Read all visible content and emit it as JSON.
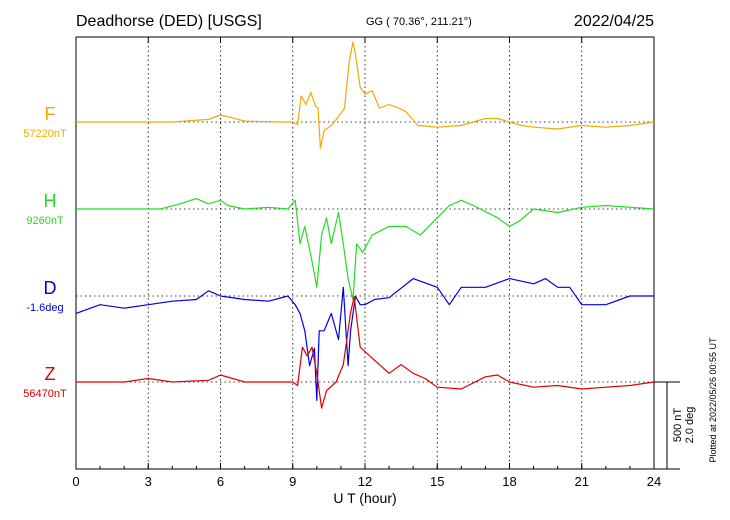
{
  "header": {
    "station": "Deadhorse (DED)  [USGS]",
    "coords": "GG ( 70.36°, 211.21°)",
    "date": "2022/04/25"
  },
  "footer": {
    "plotted": "Plotted at 2022/05/26 00:55 UT"
  },
  "chart_data": {
    "type": "line",
    "xlabel": "U T (hour)",
    "xlim": [
      0,
      24
    ],
    "xticks": [
      "0",
      "3",
      "6",
      "9",
      "12",
      "15",
      "18",
      "21",
      "24"
    ],
    "scale_bar": {
      "line1": "500 nT",
      "line2": "2.0 deg"
    },
    "grid": true,
    "series": [
      {
        "name": "F",
        "baseline_label": "57220nT",
        "color": "#f0aa00",
        "x": [
          0,
          2,
          4,
          5.5,
          6,
          7,
          8.5,
          9,
          9.2,
          9.35,
          9.55,
          9.75,
          9.95,
          10.05,
          10.15,
          10.3,
          10.6,
          10.9,
          11.15,
          11.35,
          11.5,
          11.6,
          11.8,
          12.0,
          12.3,
          12.6,
          13.0,
          13.4,
          13.7,
          14.2,
          15,
          16,
          17,
          17.5,
          18,
          18.5,
          19,
          20,
          21,
          22,
          23,
          24
        ],
        "values": [
          0,
          0,
          0,
          15,
          40,
          5,
          0,
          0,
          -15,
          150,
          100,
          170,
          90,
          80,
          -150,
          -50,
          -20,
          30,
          80,
          350,
          460,
          390,
          200,
          160,
          180,
          80,
          100,
          80,
          60,
          -20,
          -30,
          -20,
          20,
          20,
          0,
          -20,
          -30,
          -40,
          -20,
          -30,
          -20,
          0
        ]
      },
      {
        "name": "H",
        "baseline_label": "9260nT",
        "color": "#22dd22",
        "x": [
          0,
          2,
          3.5,
          4.2,
          5,
          5.5,
          6,
          6.3,
          7,
          8,
          8.8,
          9.1,
          9.3,
          9.5,
          9.8,
          10.0,
          10.2,
          10.4,
          10.6,
          10.9,
          11.1,
          11.3,
          11.5,
          11.65,
          11.9,
          12.3,
          13.0,
          13.7,
          14.3,
          15.0,
          15.5,
          16,
          16.5,
          17.5,
          18.0,
          18.4,
          19,
          20,
          21,
          22,
          23,
          24
        ],
        "values": [
          0,
          0,
          0,
          25,
          60,
          30,
          50,
          20,
          0,
          10,
          0,
          50,
          -200,
          -100,
          -300,
          -450,
          -150,
          -50,
          -200,
          -20,
          -200,
          -400,
          -520,
          -200,
          -250,
          -150,
          -100,
          -100,
          -150,
          -50,
          20,
          50,
          20,
          -50,
          -100,
          -70,
          0,
          -20,
          10,
          20,
          10,
          0
        ]
      },
      {
        "name": "D",
        "baseline_label": "-1.6deg",
        "color": "#0000dd",
        "x": [
          0,
          1,
          2,
          3,
          4,
          5,
          5.5,
          6,
          7,
          8,
          8.8,
          9.1,
          9.3,
          9.5,
          9.7,
          9.9,
          10.0,
          10.1,
          10.3,
          10.6,
          10.9,
          11.1,
          11.3,
          11.4,
          11.6,
          11.8,
          12.0,
          12.4,
          13.0,
          14.0,
          15.0,
          15.5,
          16,
          17,
          18,
          19,
          19.5,
          20,
          20.5,
          21,
          22,
          23,
          24
        ],
        "values": [
          -100,
          -50,
          -70,
          -50,
          -30,
          -20,
          30,
          0,
          -20,
          -30,
          0,
          -50,
          -100,
          -200,
          -400,
          -300,
          -600,
          -200,
          -200,
          -100,
          -250,
          50,
          -400,
          -200,
          0,
          -50,
          -50,
          -20,
          -10,
          100,
          50,
          -50,
          50,
          50,
          100,
          70,
          100,
          50,
          50,
          -50,
          -50,
          0,
          0
        ]
      },
      {
        "name": "Z",
        "baseline_label": "56470nT",
        "color": "#dd0000",
        "x": [
          0,
          2,
          3,
          4,
          5.5,
          6,
          7,
          8.5,
          9,
          9.2,
          9.4,
          9.6,
          9.8,
          10.0,
          10.2,
          10.4,
          10.8,
          11.1,
          11.4,
          11.55,
          11.8,
          12.2,
          12.6,
          13.0,
          13.5,
          14.0,
          14.5,
          15.0,
          16.0,
          17.0,
          17.5,
          18.0,
          19.0,
          20.0,
          21.0,
          22.0,
          23.0,
          24.0
        ],
        "values": [
          0,
          0,
          20,
          0,
          10,
          40,
          0,
          0,
          0,
          -20,
          200,
          150,
          200,
          50,
          -150,
          -50,
          0,
          100,
          400,
          490,
          200,
          150,
          100,
          50,
          100,
          50,
          20,
          -30,
          -40,
          30,
          40,
          0,
          -30,
          -20,
          -40,
          -30,
          -20,
          0
        ]
      }
    ]
  }
}
